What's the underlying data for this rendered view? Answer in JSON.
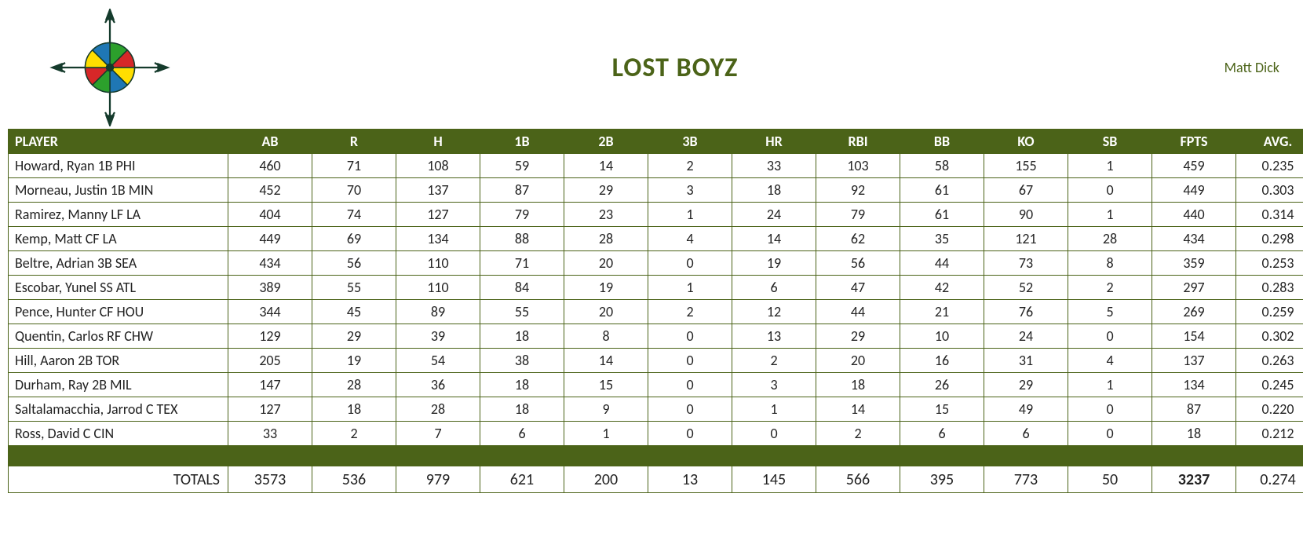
{
  "team_title": "LOST BOYZ",
  "owner_name": "Matt Dick",
  "columns": [
    "PLAYER",
    "AB",
    "R",
    "H",
    "1B",
    "2B",
    "3B",
    "HR",
    "RBI",
    "BB",
    "KO",
    "SB",
    "FPTS",
    "AVG."
  ],
  "rows": [
    {
      "player": "Howard, Ryan 1B PHI",
      "ab": "460",
      "r": "71",
      "h": "108",
      "b1": "59",
      "b2": "14",
      "b3": "2",
      "hr": "33",
      "rbi": "103",
      "bb": "58",
      "ko": "155",
      "sb": "1",
      "fpts": "459",
      "avg": "0.235"
    },
    {
      "player": "Morneau, Justin 1B MIN",
      "ab": "452",
      "r": "70",
      "h": "137",
      "b1": "87",
      "b2": "29",
      "b3": "3",
      "hr": "18",
      "rbi": "92",
      "bb": "61",
      "ko": "67",
      "sb": "0",
      "fpts": "449",
      "avg": "0.303"
    },
    {
      "player": "Ramirez, Manny LF LA",
      "ab": "404",
      "r": "74",
      "h": "127",
      "b1": "79",
      "b2": "23",
      "b3": "1",
      "hr": "24",
      "rbi": "79",
      "bb": "61",
      "ko": "90",
      "sb": "1",
      "fpts": "440",
      "avg": "0.314"
    },
    {
      "player": "Kemp, Matt CF LA",
      "ab": "449",
      "r": "69",
      "h": "134",
      "b1": "88",
      "b2": "28",
      "b3": "4",
      "hr": "14",
      "rbi": "62",
      "bb": "35",
      "ko": "121",
      "sb": "28",
      "fpts": "434",
      "avg": "0.298"
    },
    {
      "player": "Beltre, Adrian 3B SEA",
      "ab": "434",
      "r": "56",
      "h": "110",
      "b1": "71",
      "b2": "20",
      "b3": "0",
      "hr": "19",
      "rbi": "56",
      "bb": "44",
      "ko": "73",
      "sb": "8",
      "fpts": "359",
      "avg": "0.253"
    },
    {
      "player": "Escobar, Yunel SS ATL",
      "ab": "389",
      "r": "55",
      "h": "110",
      "b1": "84",
      "b2": "19",
      "b3": "1",
      "hr": "6",
      "rbi": "47",
      "bb": "42",
      "ko": "52",
      "sb": "2",
      "fpts": "297",
      "avg": "0.283"
    },
    {
      "player": "Pence, Hunter CF HOU",
      "ab": "344",
      "r": "45",
      "h": "89",
      "b1": "55",
      "b2": "20",
      "b3": "2",
      "hr": "12",
      "rbi": "44",
      "bb": "21",
      "ko": "76",
      "sb": "5",
      "fpts": "269",
      "avg": "0.259"
    },
    {
      "player": "Quentin, Carlos RF CHW",
      "ab": "129",
      "r": "29",
      "h": "39",
      "b1": "18",
      "b2": "8",
      "b3": "0",
      "hr": "13",
      "rbi": "29",
      "bb": "10",
      "ko": "24",
      "sb": "0",
      "fpts": "154",
      "avg": "0.302"
    },
    {
      "player": "Hill, Aaron 2B TOR",
      "ab": "205",
      "r": "19",
      "h": "54",
      "b1": "38",
      "b2": "14",
      "b3": "0",
      "hr": "2",
      "rbi": "20",
      "bb": "16",
      "ko": "31",
      "sb": "4",
      "fpts": "137",
      "avg": "0.263"
    },
    {
      "player": "Durham, Ray 2B MIL",
      "ab": "147",
      "r": "28",
      "h": "36",
      "b1": "18",
      "b2": "15",
      "b3": "0",
      "hr": "3",
      "rbi": "18",
      "bb": "26",
      "ko": "29",
      "sb": "1",
      "fpts": "134",
      "avg": "0.245"
    },
    {
      "player": "Saltalamacchia, Jarrod C TEX",
      "ab": "127",
      "r": "18",
      "h": "28",
      "b1": "18",
      "b2": "9",
      "b3": "0",
      "hr": "1",
      "rbi": "14",
      "bb": "15",
      "ko": "49",
      "sb": "0",
      "fpts": "87",
      "avg": "0.220"
    },
    {
      "player": "Ross, David C CIN",
      "ab": "33",
      "r": "2",
      "h": "7",
      "b1": "6",
      "b2": "1",
      "b3": "0",
      "hr": "0",
      "rbi": "2",
      "bb": "6",
      "ko": "6",
      "sb": "0",
      "fpts": "18",
      "avg": "0.212"
    }
  ],
  "totals_label": "TOTALS",
  "totals": {
    "ab": "3573",
    "r": "536",
    "h": "979",
    "b1": "621",
    "b2": "200",
    "b3": "13",
    "hr": "145",
    "rbi": "566",
    "bb": "395",
    "ko": "773",
    "sb": "50",
    "fpts": "3237",
    "avg": "0.274"
  },
  "colors": {
    "accent": "#4b6318",
    "wheel": [
      "#d62728",
      "#1f77b4",
      "#2ca02c",
      "#ffde00",
      "#d62728",
      "#1f77b4",
      "#2ca02c",
      "#ffde00"
    ]
  }
}
